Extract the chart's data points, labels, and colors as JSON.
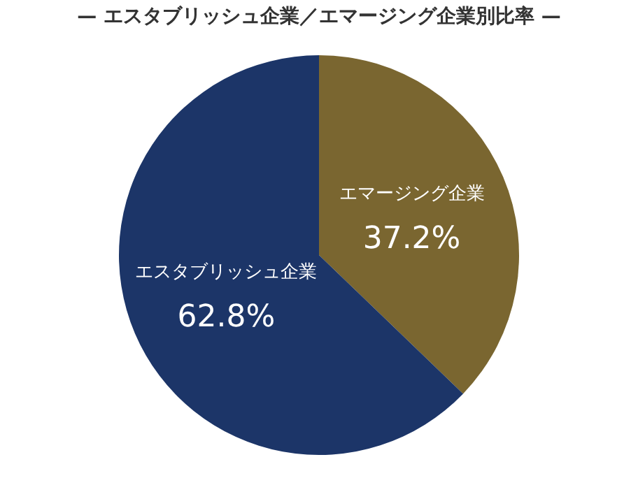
{
  "chart_data": {
    "type": "pie",
    "title": "— エスタブリッシュ企業／エマージング企業別比率 —",
    "categories": [
      "エマージング企業",
      "エスタブリッシュ企業"
    ],
    "values": [
      37.2,
      62.8
    ],
    "colors": [
      "#7a6630",
      "#1c3568"
    ],
    "value_labels": [
      "37.2%",
      "62.8%"
    ],
    "legend": false
  }
}
